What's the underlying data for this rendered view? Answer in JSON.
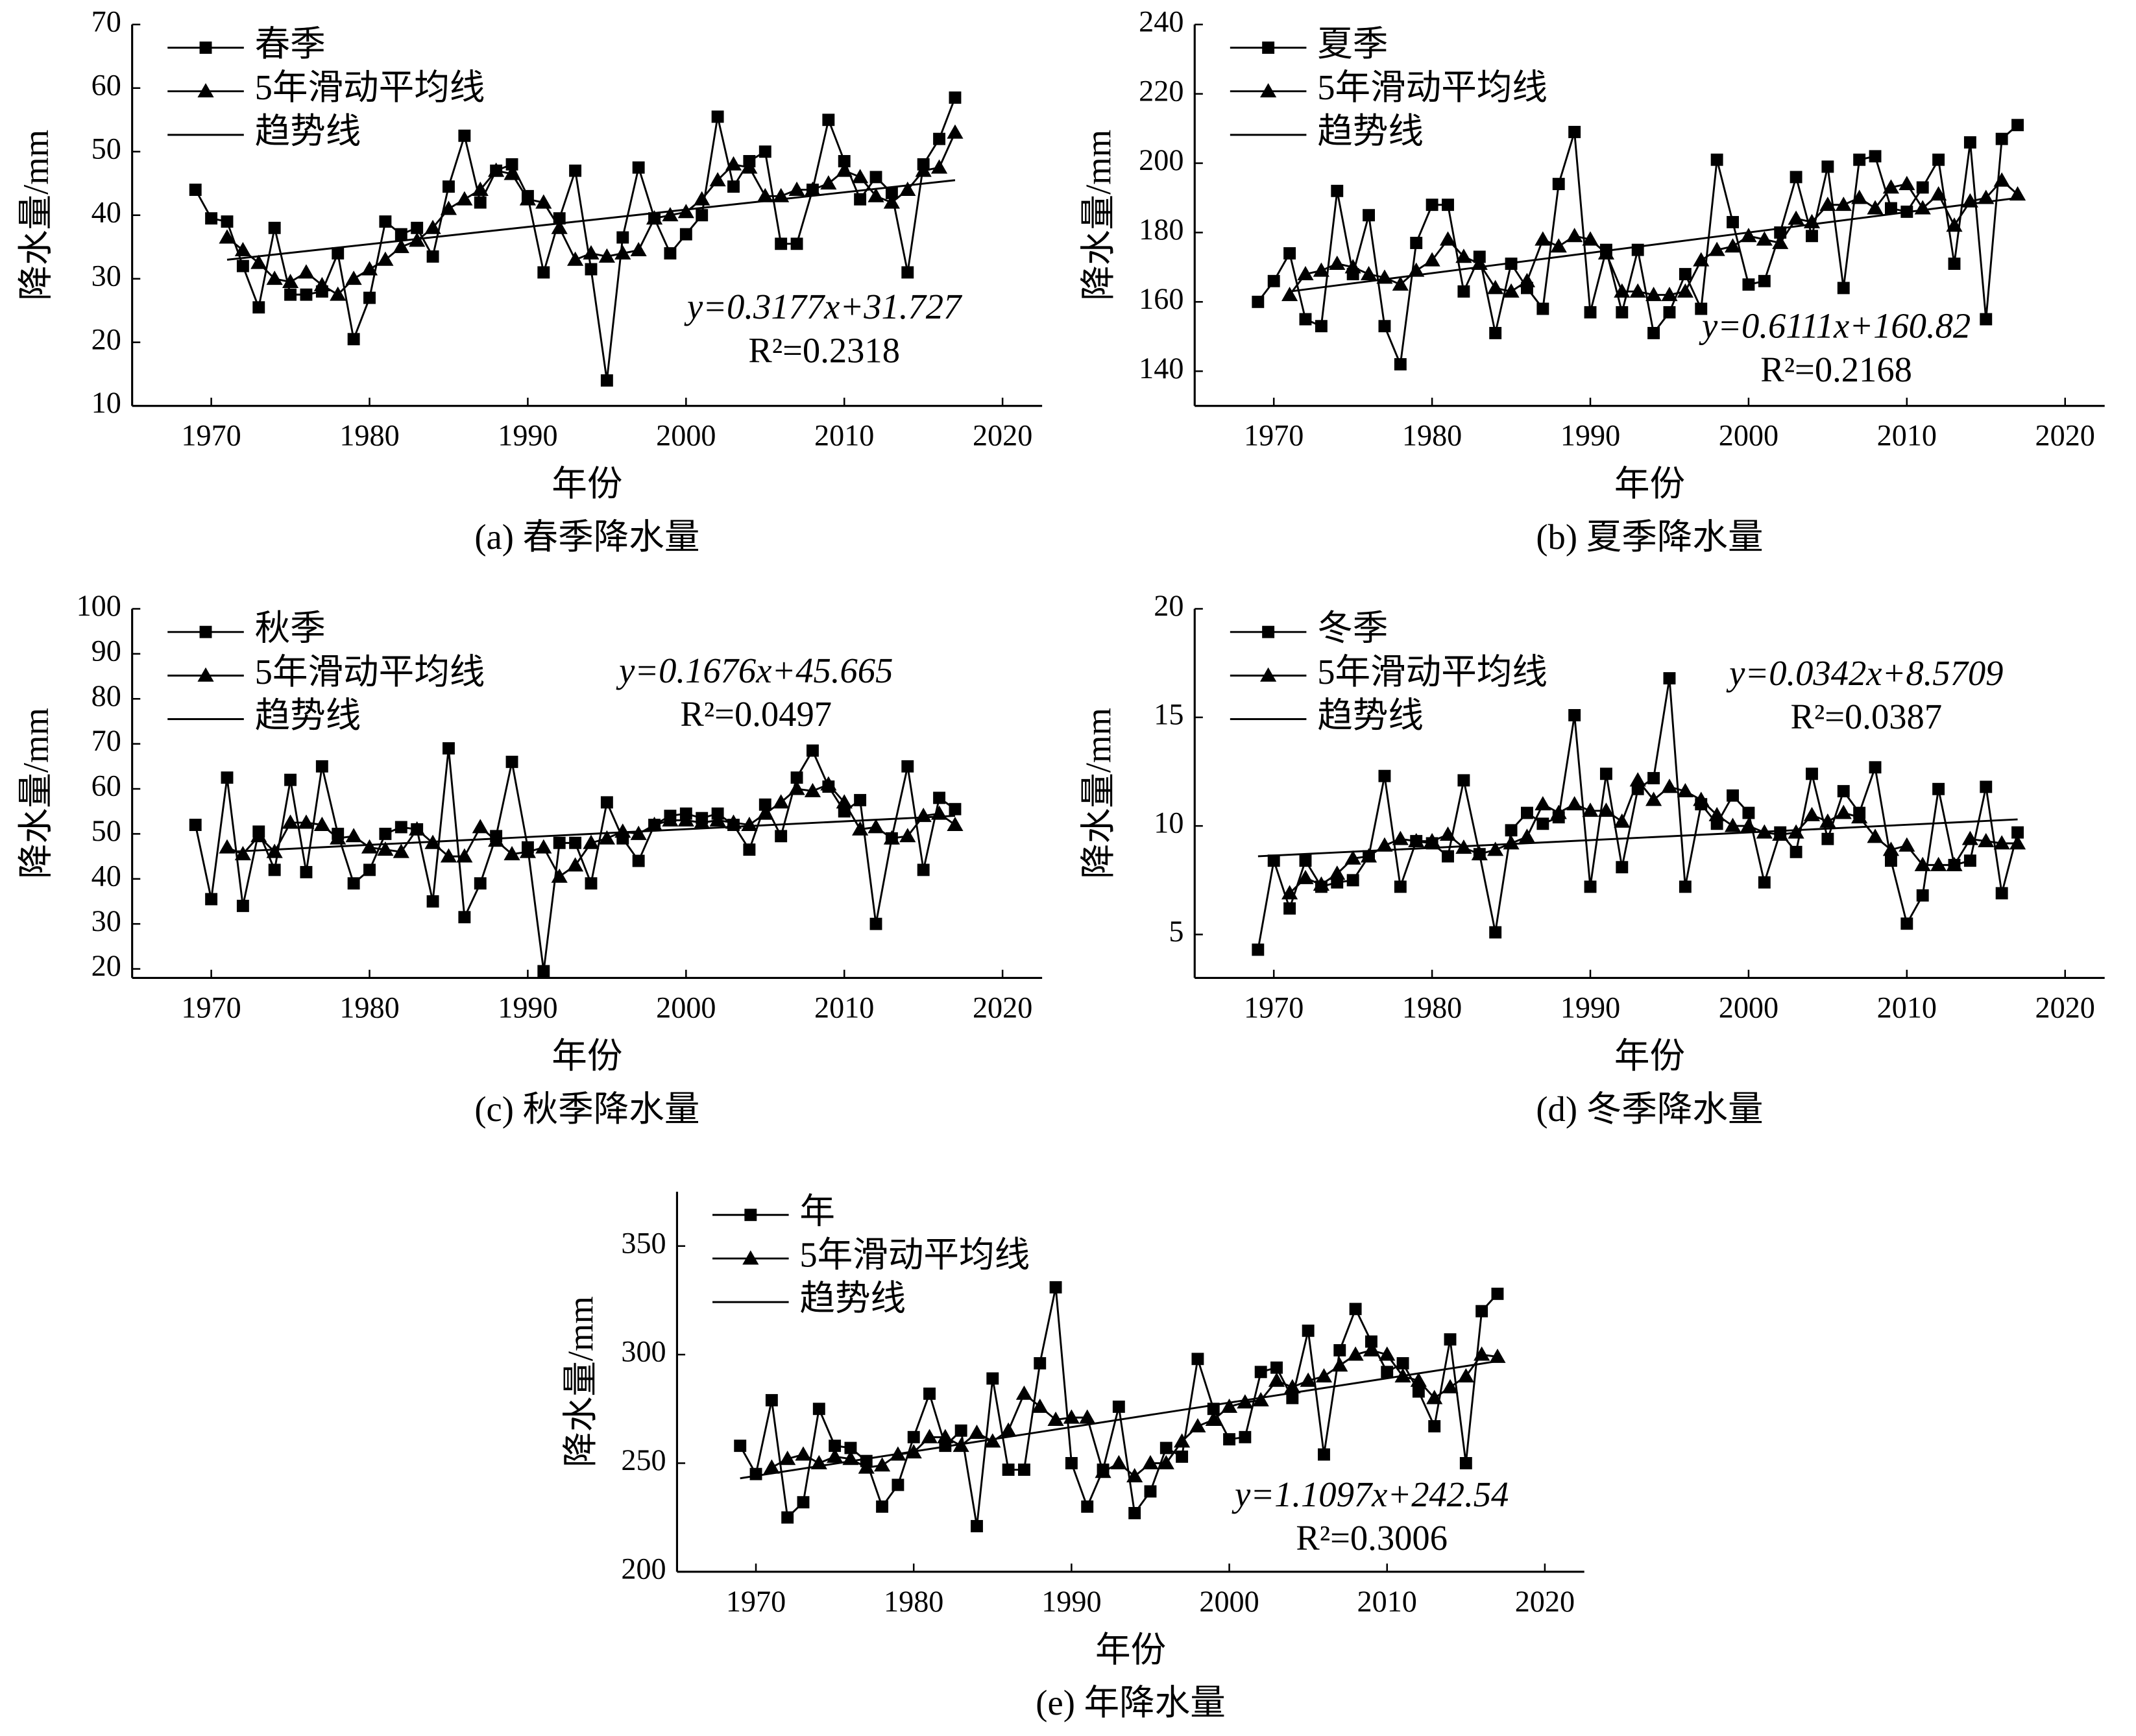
{
  "chart_data": [
    {
      "type": "line",
      "caption": "(a) 春季降水量",
      "x_label": "年份",
      "y_label": "降水量/mm",
      "annotations": [
        "y=0.3177x+31.727",
        "R²=0.2318"
      ],
      "xlim": [
        1965,
        2022.5
      ],
      "xticks": [
        1970,
        1980,
        1990,
        2000,
        2010,
        2020
      ],
      "ylim": [
        10,
        70
      ],
      "yticks": [
        10,
        20,
        30,
        40,
        50,
        60,
        70
      ],
      "x": [
        1969,
        1970,
        1971,
        1972,
        1973,
        1974,
        1975,
        1976,
        1977,
        1978,
        1979,
        1980,
        1981,
        1982,
        1983,
        1984,
        1985,
        1986,
        1987,
        1988,
        1989,
        1990,
        1991,
        1992,
        1993,
        1994,
        1995,
        1996,
        1997,
        1998,
        1999,
        2000,
        2001,
        2002,
        2003,
        2004,
        2005,
        2006,
        2007,
        2008,
        2009,
        2010,
        2011,
        2012,
        2013,
        2014,
        2015,
        2016,
        2017
      ],
      "series": [
        {
          "name": "春季",
          "marker": "square",
          "color": "#000000",
          "values": [
            44,
            39.5,
            39,
            32,
            25.5,
            38,
            27.5,
            27.5,
            28,
            34,
            20.5,
            27,
            39,
            37,
            38,
            33.5,
            44.5,
            52.5,
            42,
            47,
            48,
            43,
            31,
            39.5,
            47,
            31.5,
            14,
            36.5,
            47.5,
            39.5,
            34,
            37,
            40,
            55.5,
            44.5,
            48.5,
            50,
            35.5,
            35.5,
            44,
            55,
            48.5,
            42.5,
            46,
            43.5,
            31,
            48,
            52,
            58.5
          ]
        },
        {
          "name": "5年滑动平均线",
          "marker": "triangle",
          "color": "#000000",
          "values": [
            null,
            null,
            36.5,
            34.5,
            32.5,
            30,
            29.5,
            31,
            29,
            27.5,
            30,
            31.5,
            33,
            35,
            36,
            38,
            41,
            42.5,
            44,
            47,
            46.5,
            42.5,
            42,
            38,
            33,
            34,
            33.5,
            34,
            34.5,
            39.5,
            40,
            40.5,
            42.5,
            45.5,
            48,
            47.5,
            43,
            43,
            44,
            44,
            45,
            47,
            46,
            43,
            42,
            44,
            47,
            47.5,
            53
          ]
        },
        {
          "name": "趋势线",
          "marker": "none",
          "color": "#000000",
          "x": [
            1971,
            2017
          ],
          "values": [
            33,
            45.5
          ]
        }
      ]
    },
    {
      "type": "line",
      "caption": "(b) 夏季降水量",
      "x_label": "年份",
      "y_label": "降水量/mm",
      "annotations": [
        "y=0.6111x+160.82",
        "R²=0.2168"
      ],
      "xlim": [
        1965,
        2022.5
      ],
      "xticks": [
        1970,
        1980,
        1990,
        2000,
        2010,
        2020
      ],
      "ylim": [
        130,
        240
      ],
      "yticks": [
        140,
        160,
        180,
        200,
        220,
        240
      ],
      "x": [
        1969,
        1970,
        1971,
        1972,
        1973,
        1974,
        1975,
        1976,
        1977,
        1978,
        1979,
        1980,
        1981,
        1982,
        1983,
        1984,
        1985,
        1986,
        1987,
        1988,
        1989,
        1990,
        1991,
        1992,
        1993,
        1994,
        1995,
        1996,
        1997,
        1998,
        1999,
        2000,
        2001,
        2002,
        2003,
        2004,
        2005,
        2006,
        2007,
        2008,
        2009,
        2010,
        2011,
        2012,
        2013,
        2014,
        2015,
        2016,
        2017
      ],
      "series": [
        {
          "name": "夏季",
          "marker": "square",
          "color": "#000000",
          "values": [
            160,
            166,
            174,
            155,
            153,
            192,
            168,
            185,
            153,
            142,
            177,
            188,
            188,
            163,
            173,
            151,
            171,
            164,
            158,
            194,
            209,
            157,
            175,
            157,
            175,
            151,
            157,
            168,
            158,
            201,
            183,
            165,
            166,
            180,
            196,
            179,
            199,
            164,
            201,
            202,
            187,
            186,
            193,
            201,
            171,
            206,
            155,
            207,
            211
          ]
        },
        {
          "name": "5年滑动平均线",
          "marker": "triangle",
          "color": "#000000",
          "values": [
            null,
            null,
            162,
            168,
            169,
            171,
            170,
            168,
            167,
            165,
            169,
            172,
            178,
            173,
            171,
            164,
            163,
            166,
            178,
            176,
            179,
            178,
            174,
            163,
            163,
            162,
            162,
            163,
            172,
            175,
            176,
            179,
            178,
            177,
            184,
            183,
            188,
            188,
            190,
            187,
            193,
            194,
            187,
            191,
            182,
            189,
            190,
            195,
            191
          ]
        },
        {
          "name": "趋势线",
          "marker": "none",
          "color": "#000000",
          "x": [
            1971,
            2017
          ],
          "values": [
            163,
            190
          ]
        }
      ]
    },
    {
      "type": "line",
      "caption": "(c) 秋季降水量",
      "x_label": "年份",
      "y_label": "降水量/mm",
      "annotations": [
        "y=0.1676x+45.665",
        "R²=0.0497"
      ],
      "xlim": [
        1965,
        2022.5
      ],
      "xticks": [
        1970,
        1980,
        1990,
        2000,
        2010,
        2020
      ],
      "ylim": [
        18,
        100
      ],
      "yticks": [
        20,
        30,
        40,
        50,
        60,
        70,
        80,
        90,
        100
      ],
      "x": [
        1969,
        1970,
        1971,
        1972,
        1973,
        1974,
        1975,
        1976,
        1977,
        1978,
        1979,
        1980,
        1981,
        1982,
        1983,
        1984,
        1985,
        1986,
        1987,
        1988,
        1989,
        1990,
        1991,
        1992,
        1993,
        1994,
        1995,
        1996,
        1997,
        1998,
        1999,
        2000,
        2001,
        2002,
        2003,
        2004,
        2005,
        2006,
        2007,
        2008,
        2009,
        2010,
        2011,
        2012,
        2013,
        2014,
        2015,
        2016,
        2017
      ],
      "series": [
        {
          "name": "秋季",
          "marker": "square",
          "color": "#000000",
          "values": [
            52,
            35.5,
            62.5,
            34,
            50.5,
            42,
            62,
            41.5,
            65,
            50,
            39,
            42,
            50,
            51.5,
            51,
            35,
            69,
            31.5,
            39,
            49.5,
            66,
            47,
            19.5,
            48,
            48,
            39,
            57,
            49,
            44,
            52,
            54,
            54.5,
            53.5,
            54.5,
            52,
            46.5,
            56.5,
            49.5,
            62.5,
            68.5,
            60.5,
            55,
            57.5,
            30,
            49,
            65,
            42,
            58,
            55.5
          ]
        },
        {
          "name": "5年滑动平均线",
          "marker": "triangle",
          "color": "#000000",
          "values": [
            null,
            null,
            47,
            45.5,
            49.5,
            46,
            52.5,
            52.5,
            52,
            49,
            49.5,
            47,
            46.5,
            46,
            51,
            48,
            45,
            45,
            51.5,
            48.5,
            45.5,
            46,
            47,
            40.5,
            43,
            48,
            49,
            50.5,
            50,
            52,
            53,
            53,
            52.5,
            53,
            52.5,
            52,
            54.5,
            57,
            60,
            59.5,
            61,
            57,
            51,
            51.5,
            49,
            49.5,
            54,
            54.5,
            52
          ]
        },
        {
          "name": "趋势线",
          "marker": "none",
          "color": "#000000",
          "x": [
            1971,
            2017
          ],
          "values": [
            46,
            54
          ]
        }
      ]
    },
    {
      "type": "line",
      "caption": "(d) 冬季降水量",
      "x_label": "年份",
      "y_label": "降水量/mm",
      "annotations": [
        "y=0.0342x+8.5709",
        "R²=0.0387"
      ],
      "xlim": [
        1965,
        2022.5
      ],
      "xticks": [
        1970,
        1980,
        1990,
        2000,
        2010,
        2020
      ],
      "ylim": [
        3,
        20
      ],
      "yticks": [
        5,
        10,
        15,
        20
      ],
      "x": [
        1969,
        1970,
        1971,
        1972,
        1973,
        1974,
        1975,
        1976,
        1977,
        1978,
        1979,
        1980,
        1981,
        1982,
        1983,
        1984,
        1985,
        1986,
        1987,
        1988,
        1989,
        1990,
        1991,
        1992,
        1993,
        1994,
        1995,
        1996,
        1997,
        1998,
        1999,
        2000,
        2001,
        2002,
        2003,
        2004,
        2005,
        2006,
        2007,
        2008,
        2009,
        2010,
        2011,
        2012,
        2013,
        2014,
        2015,
        2016,
        2017
      ],
      "series": [
        {
          "name": "冬季",
          "marker": "square",
          "color": "#000000",
          "values": [
            4.3,
            8.4,
            6.2,
            8.4,
            7.2,
            7.4,
            7.5,
            8.6,
            12.3,
            7.2,
            9.3,
            9.2,
            8.6,
            12.1,
            8.7,
            5.1,
            9.8,
            10.6,
            10.1,
            10.4,
            15.1,
            7.2,
            12.4,
            8.1,
            11.7,
            12.2,
            16.8,
            7.2,
            11,
            10.1,
            11.4,
            10.6,
            7.4,
            9.7,
            8.8,
            12.4,
            9.4,
            11.6,
            10.6,
            12.7,
            8.4,
            5.5,
            6.8,
            11.7,
            8.2,
            8.4,
            11.8,
            6.9,
            9.7
          ]
        },
        {
          "name": "5年滑动平均线",
          "marker": "triangle",
          "color": "#000000",
          "values": [
            null,
            null,
            6.9,
            7.6,
            7.3,
            7.8,
            8.5,
            8.6,
            9.1,
            9.4,
            9.3,
            9.3,
            9.6,
            9,
            8.7,
            8.9,
            9.2,
            9.5,
            11,
            10.6,
            11,
            10.7,
            10.7,
            10.2,
            12.1,
            11.2,
            11.8,
            11.6,
            11.2,
            10.5,
            10,
            10,
            9.7,
            9.6,
            9.7,
            10.5,
            10.2,
            10.6,
            10.4,
            9.5,
            8.9,
            9.1,
            8.2,
            8.2,
            8.2,
            9.4,
            9.3,
            9.2,
            9.2
          ]
        },
        {
          "name": "趋势线",
          "marker": "none",
          "color": "#000000",
          "x": [
            1969,
            2017
          ],
          "values": [
            8.6,
            10.3
          ]
        }
      ]
    },
    {
      "type": "line",
      "caption": "(e) 年降水量",
      "x_label": "年份",
      "y_label": "降水量/mm",
      "annotations": [
        "y=1.1097x+242.54",
        "R²=0.3006"
      ],
      "xlim": [
        1965,
        2022.5
      ],
      "xticks": [
        1970,
        1980,
        1990,
        2000,
        2010,
        2020
      ],
      "ylim": [
        200,
        375
      ],
      "yticks": [
        200,
        250,
        300,
        350
      ],
      "x": [
        1969,
        1970,
        1971,
        1972,
        1973,
        1974,
        1975,
        1976,
        1977,
        1978,
        1979,
        1980,
        1981,
        1982,
        1983,
        1984,
        1985,
        1986,
        1987,
        1988,
        1989,
        1990,
        1991,
        1992,
        1993,
        1994,
        1995,
        1996,
        1997,
        1998,
        1999,
        2000,
        2001,
        2002,
        2003,
        2004,
        2005,
        2006,
        2007,
        2008,
        2009,
        2010,
        2011,
        2012,
        2013,
        2014,
        2015,
        2016,
        2017
      ],
      "series": [
        {
          "name": "年",
          "marker": "square",
          "color": "#000000",
          "values": [
            258,
            245,
            279,
            225,
            232,
            275,
            258,
            257,
            251,
            230,
            240,
            262,
            282,
            258,
            265,
            221,
            289,
            247,
            247,
            296,
            331,
            250,
            230,
            247,
            276,
            227,
            237,
            257,
            253,
            298,
            275,
            261,
            262,
            292,
            294,
            280,
            311,
            254,
            302,
            321,
            306,
            292,
            296,
            283,
            267,
            307,
            250,
            320,
            328
          ]
        },
        {
          "name": "5年滑动平均线",
          "marker": "triangle",
          "color": "#000000",
          "values": [
            null,
            null,
            248,
            252,
            254,
            250,
            253,
            252,
            248,
            249,
            254,
            255,
            262,
            262,
            258,
            264,
            260,
            265,
            282,
            276,
            270,
            271,
            271,
            246,
            250,
            244,
            250,
            250,
            260,
            267,
            270,
            276,
            278,
            279,
            288,
            285,
            288,
            290,
            295,
            300,
            302,
            300,
            290,
            288,
            280,
            285,
            290,
            300,
            299
          ]
        },
        {
          "name": "趋势线",
          "marker": "none",
          "color": "#000000",
          "x": [
            1969,
            2017
          ],
          "values": [
            243,
            297
          ]
        }
      ]
    }
  ]
}
